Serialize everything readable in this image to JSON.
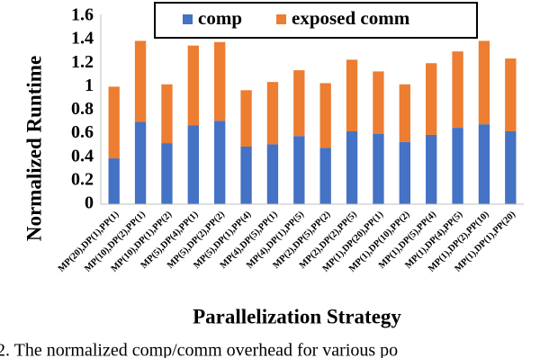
{
  "chart_data": {
    "type": "stacked_bar",
    "y_label": "Normalized Runtime",
    "x_label": "Parallelization Strategy",
    "caption": "2.  The normalized comp/comm overhead for various po",
    "categories": [
      "MP(20),DP(1),PP(1)",
      "MP(10),DP(2),PP(1)",
      "MP(10),DP(1),PP(2)",
      "MP(5),DP(4),PP(1)",
      "MP(5),DP(2),PP(2)",
      "MP(5),DP(1),PP(4)",
      "MP(4),DP(5),PP(1)",
      "MP(4),DP(1),PP(5)",
      "MP(2),DP(5),PP(2)",
      "MP(2),DP(2),PP(5)",
      "MP(1),DP(20),PP(1)",
      "MP(1),DP(10),PP(2)",
      "MP(1),DP(5),PP(4)",
      "MP(1),DP(4),PP(5)",
      "MP(1),DP(2),PP(10)",
      "MP(1),DP(1),PP(20)"
    ],
    "series": [
      {
        "name": "comp",
        "color": "#4472c4",
        "values": [
          0.39,
          0.7,
          0.52,
          0.67,
          0.71,
          0.49,
          0.51,
          0.58,
          0.48,
          0.62,
          0.6,
          0.53,
          0.59,
          0.65,
          0.68,
          0.62
        ]
      },
      {
        "name": "exposed comm",
        "color": "#ed7d31",
        "values": [
          0.61,
          0.69,
          0.5,
          0.68,
          0.67,
          0.48,
          0.53,
          0.56,
          0.55,
          0.61,
          0.53,
          0.49,
          0.61,
          0.65,
          0.71,
          0.62
        ]
      }
    ],
    "ylim": [
      0,
      1.6
    ],
    "yticks": [
      0,
      0.2,
      0.4,
      0.6,
      0.8,
      1,
      1.2,
      1.4,
      1.6
    ],
    "grid": false,
    "legend": "top"
  }
}
